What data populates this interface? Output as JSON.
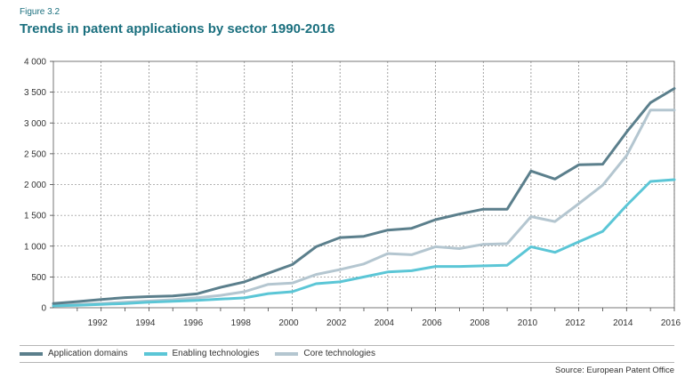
{
  "figure_label": "Figure 3.2",
  "chart_data": {
    "type": "line",
    "title": "Trends in patent applications by sector 1990-2016",
    "xlabel": "",
    "ylabel": "",
    "x": [
      1990,
      1991,
      1992,
      1993,
      1994,
      1995,
      1996,
      1997,
      1998,
      1999,
      2000,
      2001,
      2002,
      2003,
      2004,
      2005,
      2006,
      2007,
      2008,
      2009,
      2010,
      2011,
      2012,
      2013,
      2014,
      2015,
      2016
    ],
    "x_tick_labels": [
      "1992",
      "1994",
      "1996",
      "1998",
      "2000",
      "2002",
      "2004",
      "2006",
      "2008",
      "2010",
      "2012",
      "2014",
      "2016"
    ],
    "y_tick_labels": [
      "0",
      "500",
      "1 000",
      "1 500",
      "2 000",
      "2 500",
      "3 000",
      "3 500",
      "4 000"
    ],
    "ylim": [
      0,
      4000
    ],
    "grid": true,
    "legend_position": "bottom",
    "series": [
      {
        "name": "Application domains",
        "color": "#5b7f8c",
        "values": [
          70,
          100,
          135,
          165,
          180,
          190,
          225,
          330,
          420,
          560,
          700,
          990,
          1140,
          1160,
          1260,
          1290,
          1430,
          1520,
          1600,
          1600,
          2220,
          2090,
          2320,
          2330,
          2850,
          3330,
          3560
        ]
      },
      {
        "name": "Enabling technologies",
        "color": "#5bc6d6",
        "values": [
          30,
          40,
          55,
          70,
          90,
          105,
          120,
          140,
          160,
          230,
          260,
          390,
          420,
          500,
          580,
          600,
          670,
          670,
          680,
          690,
          990,
          900,
          1070,
          1240,
          1660,
          2050,
          2080
        ]
      },
      {
        "name": "Core technologies",
        "color": "#b4c6d0",
        "values": [
          40,
          55,
          70,
          90,
          110,
          130,
          160,
          200,
          260,
          380,
          400,
          540,
          620,
          710,
          880,
          860,
          990,
          960,
          1030,
          1040,
          1480,
          1400,
          1690,
          1990,
          2470,
          3210,
          3210
        ]
      }
    ]
  },
  "source": "Source: European Patent Office"
}
